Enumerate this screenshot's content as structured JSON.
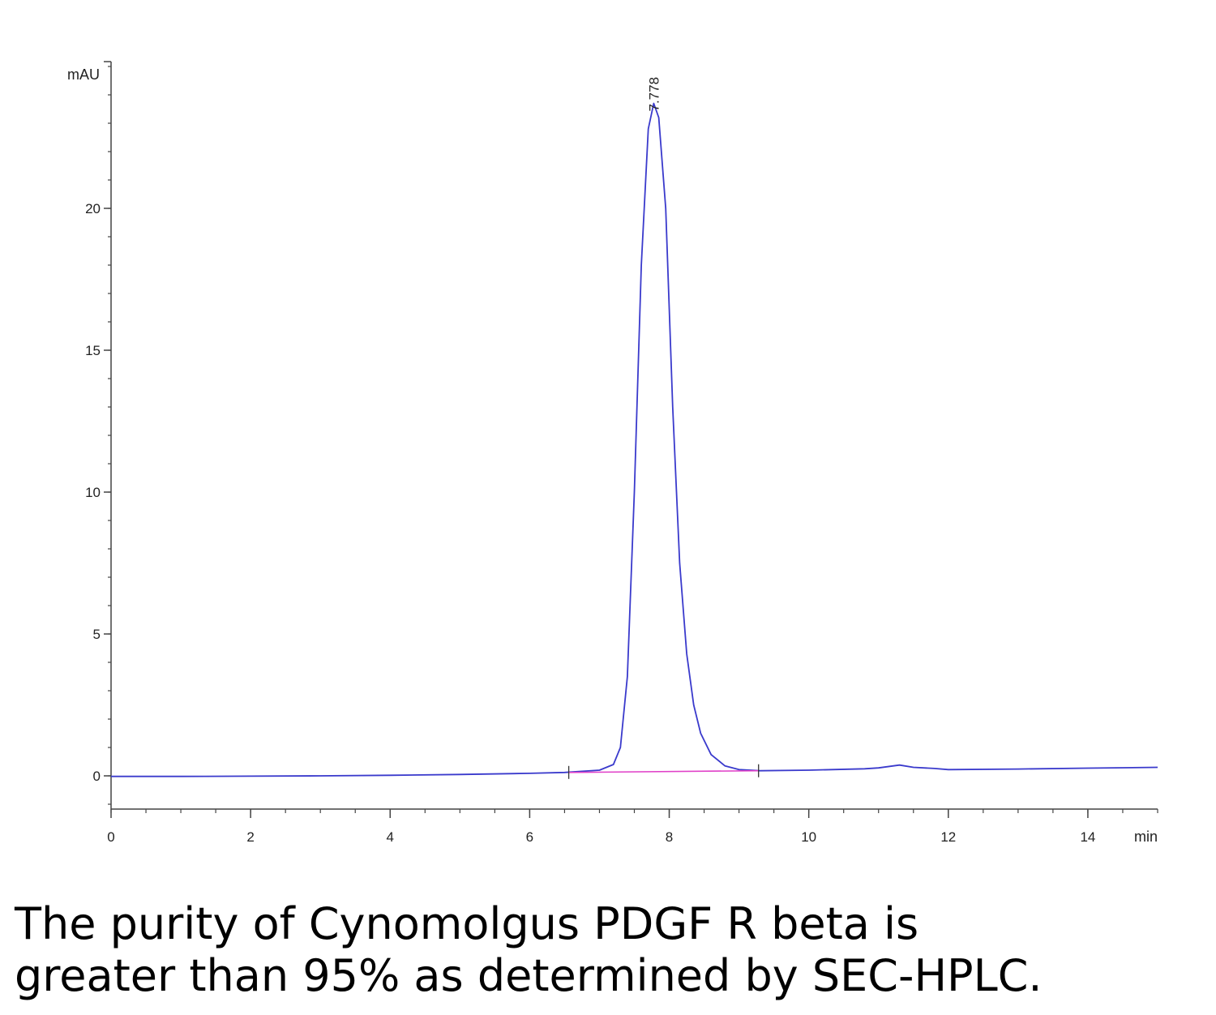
{
  "chart_data": {
    "type": "line",
    "title": "",
    "ylabel": "mAU",
    "xlabel": "min",
    "xlim": [
      0,
      15
    ],
    "ylim": [
      -1.2,
      25.3
    ],
    "x_ticks": [
      0,
      2,
      4,
      6,
      8,
      10,
      12,
      14
    ],
    "x_tick_labels": [
      "0",
      "2",
      "4",
      "6",
      "8",
      "10",
      "12",
      "14"
    ],
    "y_ticks": [
      0,
      5,
      10,
      15,
      20
    ],
    "y_tick_labels": [
      "0",
      "5",
      "10",
      "15",
      "20"
    ],
    "grid": false,
    "peak_annotation": {
      "x": 7.778,
      "y": 23.7,
      "label": "7.778"
    },
    "series": [
      {
        "color": "#3a3acc",
        "x": [
          0,
          1,
          2,
          3,
          4,
          5,
          6,
          6.5,
          7.0,
          7.2,
          7.3,
          7.4,
          7.5,
          7.6,
          7.7,
          7.778,
          7.85,
          7.95,
          8.05,
          8.15,
          8.25,
          8.35,
          8.45,
          8.6,
          8.8,
          9.0,
          9.3,
          10.0,
          10.8,
          11.0,
          11.3,
          11.5,
          11.8,
          12.0,
          13.0,
          14.0,
          15.0
        ],
        "y": [
          -0.02,
          -0.02,
          -0.01,
          0.0,
          0.02,
          0.05,
          0.09,
          0.12,
          0.2,
          0.4,
          1.0,
          3.5,
          10.0,
          18.0,
          22.8,
          23.7,
          23.2,
          20.0,
          13.0,
          7.5,
          4.3,
          2.5,
          1.5,
          0.75,
          0.35,
          0.22,
          0.18,
          0.2,
          0.25,
          0.28,
          0.38,
          0.3,
          0.26,
          0.22,
          0.24,
          0.27,
          0.3
        ]
      },
      {
        "color": "#e040c8",
        "x": [
          6.56,
          9.28
        ],
        "y": [
          0.12,
          0.18
        ]
      }
    ]
  },
  "caption": {
    "line1": "The purity of Cynomolgus PDGF R beta is",
    "line2": "greater than 95% as determined by SEC-HPLC."
  }
}
